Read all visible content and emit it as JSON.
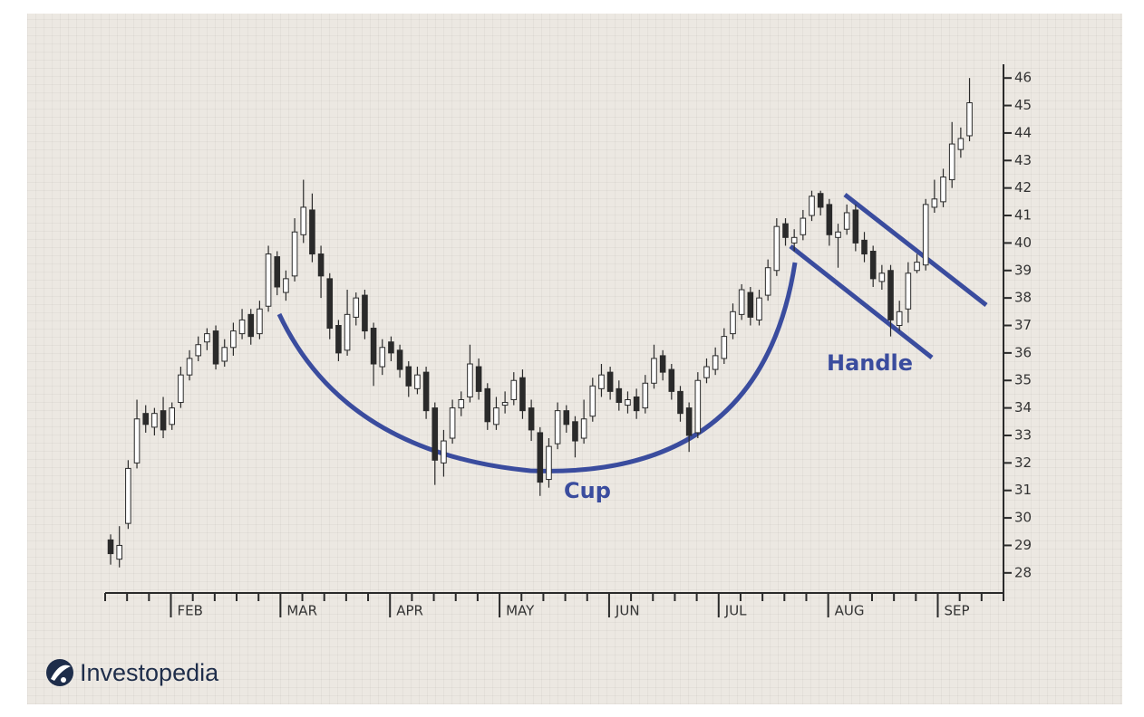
{
  "chart_data": {
    "type": "candlestick",
    "xlim": [
      0,
      41
    ],
    "xticks": [
      {
        "value": 3,
        "label": "FEB"
      },
      {
        "value": 8,
        "label": "MAR"
      },
      {
        "value": 13,
        "label": "APR"
      },
      {
        "value": 18,
        "label": "MAY"
      },
      {
        "value": 23,
        "label": "JUN"
      },
      {
        "value": 28,
        "label": "JUL"
      },
      {
        "value": 33,
        "label": "AUG"
      },
      {
        "value": 38,
        "label": "SEP"
      }
    ],
    "xminor_ticks": [
      0,
      1,
      2,
      4,
      5,
      6,
      7,
      9,
      10,
      11,
      12,
      14,
      15,
      16,
      17,
      19,
      20,
      21,
      22,
      24,
      25,
      26,
      27,
      29,
      30,
      31,
      32,
      34,
      35,
      36,
      37,
      39,
      40,
      41
    ],
    "ylim": [
      27.5,
      46.5
    ],
    "yticks": [
      28,
      29,
      30,
      31,
      32,
      33,
      34,
      35,
      36,
      37,
      38,
      39,
      40,
      41,
      42,
      43,
      44,
      45,
      46
    ],
    "up_color": "#ffffff",
    "down_color": "#2a2a2a",
    "line_color": "#2a2a2a",
    "x": [
      0.25,
      0.65,
      1.05,
      1.45,
      1.85,
      2.25,
      2.65,
      3.05,
      3.45,
      3.85,
      4.25,
      4.65,
      5.05,
      5.45,
      5.85,
      6.25,
      6.65,
      7.05,
      7.45,
      7.85,
      8.25,
      8.65,
      9.05,
      9.45,
      9.85,
      10.25,
      10.65,
      11.05,
      11.45,
      11.85,
      12.25,
      12.65,
      13.05,
      13.45,
      13.85,
      14.25,
      14.65,
      15.05,
      15.45,
      15.85,
      16.25,
      16.65,
      17.05,
      17.45,
      17.85,
      18.25,
      18.65,
      19.05,
      19.45,
      19.85,
      20.25,
      20.65,
      21.05,
      21.45,
      21.85,
      22.25,
      22.65,
      23.05,
      23.45,
      23.85,
      24.25,
      24.65,
      25.05,
      25.45,
      25.85,
      26.25,
      26.65,
      27.05,
      27.45,
      27.85,
      28.25,
      28.65,
      29.05,
      29.45,
      29.85,
      30.25,
      30.65,
      31.05,
      31.45,
      31.85,
      32.25,
      32.65,
      33.05,
      33.45,
      33.85,
      34.25,
      34.65,
      35.05,
      35.45,
      35.85,
      36.25,
      36.65,
      37.05,
      37.45,
      37.85,
      38.25,
      38.65,
      39.05,
      39.45
    ],
    "open": [
      29.2,
      28.5,
      29.8,
      32.0,
      33.8,
      33.3,
      33.9,
      33.4,
      34.2,
      35.2,
      35.9,
      36.4,
      36.8,
      35.7,
      36.2,
      36.7,
      37.4,
      36.7,
      37.7,
      39.5,
      38.2,
      38.8,
      40.3,
      41.2,
      39.6,
      38.7,
      37.0,
      36.1,
      37.3,
      38.1,
      36.9,
      35.5,
      36.4,
      36.1,
      35.5,
      34.7,
      35.3,
      34.0,
      32.0,
      32.9,
      34.0,
      34.4,
      35.5,
      34.7,
      33.4,
      34.1,
      34.3,
      35.1,
      34.0,
      33.1,
      31.4,
      32.7,
      33.9,
      33.5,
      32.9,
      33.7,
      34.7,
      35.3,
      34.7,
      34.1,
      34.4,
      34.0,
      34.9,
      35.9,
      35.4,
      34.6,
      34.0,
      33.1,
      35.1,
      35.4,
      35.8,
      36.7,
      37.4,
      38.2,
      37.2,
      38.1,
      39.0,
      40.7,
      40.0,
      40.3,
      41.0,
      41.8,
      41.4,
      40.2,
      40.5,
      41.2,
      40.1,
      39.7,
      38.6,
      39.0,
      37.0,
      37.6,
      39.0,
      39.2,
      41.3,
      41.5,
      42.3,
      43.4,
      43.9
    ],
    "high": [
      29.4,
      29.7,
      32.1,
      34.3,
      34.1,
      34.0,
      34.4,
      34.2,
      35.5,
      36.1,
      36.6,
      36.9,
      37.0,
      36.5,
      37.1,
      37.6,
      37.6,
      37.9,
      39.9,
      39.7,
      39.0,
      40.9,
      42.3,
      41.8,
      39.9,
      38.9,
      37.2,
      38.3,
      38.2,
      38.3,
      37.1,
      36.5,
      36.6,
      36.3,
      35.7,
      35.5,
      35.5,
      34.2,
      33.2,
      34.3,
      34.6,
      36.3,
      35.8,
      34.9,
      34.4,
      34.6,
      35.3,
      35.4,
      34.3,
      33.3,
      32.9,
      34.2,
      34.1,
      33.7,
      34.3,
      35.1,
      35.6,
      35.5,
      35.0,
      34.6,
      34.7,
      35.2,
      36.3,
      36.1,
      35.6,
      34.8,
      34.2,
      35.3,
      35.8,
      36.2,
      36.9,
      37.8,
      38.5,
      38.4,
      38.3,
      39.4,
      40.9,
      40.9,
      40.5,
      41.2,
      41.9,
      41.9,
      41.6,
      40.7,
      41.4,
      41.4,
      40.4,
      39.9,
      39.2,
      39.2,
      37.9,
      39.3,
      39.6,
      41.6,
      42.3,
      42.7,
      44.4,
      44.2,
      46.0
    ],
    "low": [
      28.3,
      28.2,
      29.6,
      31.8,
      33.1,
      33.0,
      32.9,
      33.2,
      34.0,
      35.0,
      35.7,
      36.1,
      35.4,
      35.5,
      35.9,
      36.5,
      36.3,
      36.5,
      37.5,
      38.1,
      37.9,
      38.6,
      40.0,
      39.3,
      38.0,
      36.5,
      35.7,
      35.9,
      37.0,
      36.5,
      34.8,
      35.2,
      35.7,
      35.1,
      34.4,
      34.5,
      33.6,
      31.2,
      31.5,
      32.7,
      33.7,
      34.2,
      34.3,
      33.2,
      33.2,
      33.8,
      34.1,
      33.6,
      32.8,
      30.8,
      31.1,
      32.5,
      33.1,
      32.2,
      32.7,
      33.5,
      34.4,
      34.3,
      33.9,
      33.8,
      33.6,
      33.8,
      34.7,
      35.0,
      34.3,
      33.5,
      32.4,
      32.9,
      34.9,
      35.2,
      35.6,
      36.5,
      37.2,
      37.0,
      37.0,
      37.9,
      38.8,
      39.9,
      39.7,
      40.1,
      40.8,
      41.0,
      39.9,
      39.1,
      40.3,
      39.7,
      39.3,
      38.4,
      38.3,
      36.6,
      36.8,
      37.1,
      38.9,
      39.0,
      41.1,
      41.3,
      42.0,
      43.1,
      43.7
    ],
    "close": [
      28.7,
      29.0,
      31.8,
      33.6,
      33.4,
      33.8,
      33.2,
      34.0,
      35.2,
      35.8,
      36.3,
      36.7,
      35.6,
      36.2,
      36.8,
      37.2,
      36.6,
      37.6,
      39.6,
      38.4,
      38.7,
      40.4,
      41.3,
      39.6,
      38.8,
      36.9,
      36.0,
      37.4,
      38.0,
      36.8,
      35.6,
      36.2,
      36.0,
      35.4,
      34.8,
      35.2,
      33.9,
      32.1,
      32.8,
      34.0,
      34.3,
      35.6,
      34.6,
      33.5,
      34.0,
      34.2,
      35.0,
      33.9,
      33.2,
      31.3,
      32.6,
      33.9,
      33.4,
      32.8,
      33.6,
      34.8,
      35.2,
      34.6,
      34.2,
      34.3,
      33.9,
      34.9,
      35.8,
      35.3,
      34.6,
      33.8,
      33.0,
      35.0,
      35.5,
      35.9,
      36.6,
      37.5,
      38.3,
      37.3,
      38.0,
      39.1,
      40.6,
      40.2,
      40.2,
      40.9,
      41.7,
      41.3,
      40.3,
      40.4,
      41.1,
      40.0,
      39.6,
      38.7,
      38.9,
      37.2,
      37.5,
      38.9,
      39.3,
      41.4,
      41.6,
      42.4,
      43.6,
      43.8,
      45.1
    ],
    "annotations": {
      "cup": "Cup",
      "handle": "Handle"
    },
    "annotation_color": "#3a4c9e",
    "logo": "Investopedia"
  }
}
